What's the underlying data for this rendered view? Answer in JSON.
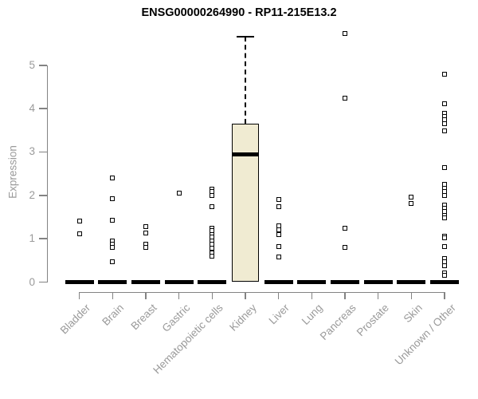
{
  "title": "ENSG00000264990 - RP11-215E13.2",
  "ylabel": "Expression",
  "colors": {
    "box_fill": "#f0ebd2",
    "box_border": "#000000",
    "median": "#000000",
    "axis": "#838383",
    "tick_label": "#9a9a9a",
    "title": "#000000",
    "outlier_fill": "#ffffff"
  },
  "chart_data": {
    "type": "boxplot",
    "title": "ENSG00000264990 - RP11-215E13.2",
    "xlabel": "",
    "ylabel": "Expression",
    "ylim": [
      0,
      5.8
    ],
    "yticks": [
      0,
      1,
      2,
      3,
      4,
      5
    ],
    "grid": false,
    "legend": false,
    "categories": [
      "Bladder",
      "Brain",
      "Breast",
      "Gastric",
      "Hematopoietic cells",
      "Kidney",
      "Liver",
      "Lung",
      "Pancreas",
      "Prostate",
      "Skin",
      "Unknown / Other"
    ],
    "series": [
      {
        "name": "Bladder",
        "whisker_low": 0,
        "q1": 0,
        "median": 0,
        "q3": 0,
        "whisker_high": 0,
        "outliers": [
          1.4,
          1.12
        ]
      },
      {
        "name": "Brain",
        "whisker_low": 0,
        "q1": 0,
        "median": 0,
        "q3": 0,
        "whisker_high": 0,
        "outliers": [
          2.4,
          1.92,
          1.42,
          0.95,
          0.88,
          0.8,
          0.47
        ]
      },
      {
        "name": "Breast",
        "whisker_low": 0,
        "q1": 0,
        "median": 0,
        "q3": 0,
        "whisker_high": 0,
        "outliers": [
          1.27,
          1.13,
          0.87,
          0.8
        ]
      },
      {
        "name": "Gastric",
        "whisker_low": 0,
        "q1": 0,
        "median": 0,
        "q3": 0,
        "whisker_high": 0,
        "outliers": [
          2.05
        ]
      },
      {
        "name": "Hematopoietic cells",
        "whisker_low": 0,
        "q1": 0,
        "median": 0,
        "q3": 0,
        "whisker_high": 0,
        "outliers": [
          2.15,
          2.08,
          2.0,
          1.73,
          1.25,
          1.18,
          1.1,
          1.04,
          0.95,
          0.87,
          0.79,
          0.67,
          0.6
        ]
      },
      {
        "name": "Kidney",
        "whisker_low": 0,
        "q1": 0,
        "median": 2.95,
        "q3": 3.65,
        "whisker_high": 5.66,
        "outliers": []
      },
      {
        "name": "Liver",
        "whisker_low": 0,
        "q1": 0,
        "median": 0,
        "q3": 0,
        "whisker_high": 0,
        "outliers": [
          1.9,
          1.73,
          1.29,
          1.2,
          1.1,
          0.82,
          0.58
        ]
      },
      {
        "name": "Lung",
        "whisker_low": 0,
        "q1": 0,
        "median": 0,
        "q3": 0,
        "whisker_high": 0,
        "outliers": []
      },
      {
        "name": "Pancreas",
        "whisker_low": 0,
        "q1": 0,
        "median": 0,
        "q3": 0,
        "whisker_high": 0,
        "outliers": [
          5.73,
          4.25,
          1.24,
          0.8
        ]
      },
      {
        "name": "Prostate",
        "whisker_low": 0,
        "q1": 0,
        "median": 0,
        "q3": 0,
        "whisker_high": 0,
        "outliers": []
      },
      {
        "name": "Skin",
        "whisker_low": 0,
        "q1": 0,
        "median": 0,
        "q3": 0,
        "whisker_high": 0,
        "outliers": [
          1.96,
          1.82
        ]
      },
      {
        "name": "Unknown / Other",
        "whisker_low": 0,
        "q1": 0,
        "median": 0,
        "q3": 0,
        "whisker_high": 0,
        "outliers": [
          4.79,
          4.11,
          3.9,
          3.82,
          3.74,
          3.66,
          3.48,
          2.64,
          2.25,
          2.16,
          2.08,
          2.0,
          1.78,
          1.7,
          1.62,
          1.54,
          1.48,
          1.06,
          1.02,
          0.82,
          0.55,
          0.46,
          0.38,
          0.22,
          0.15
        ]
      }
    ]
  }
}
